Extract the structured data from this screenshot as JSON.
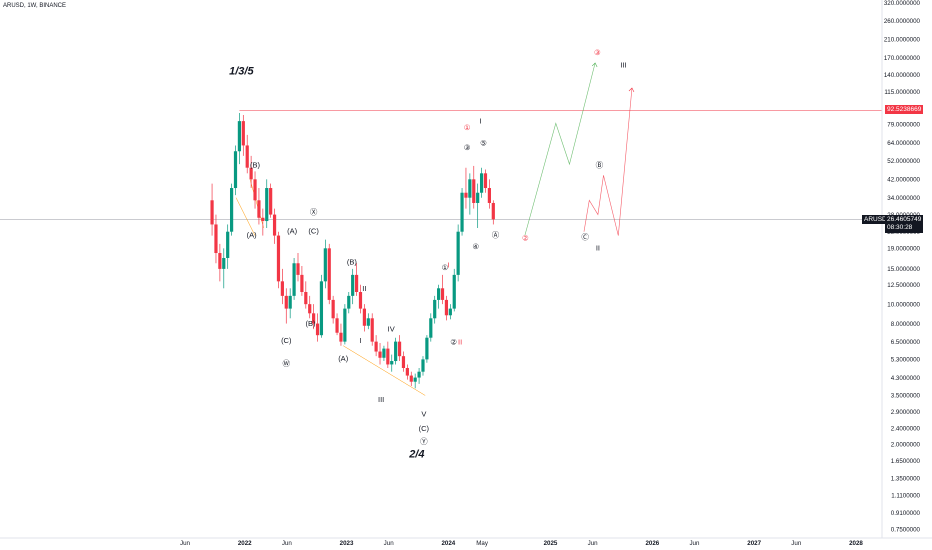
{
  "header": {
    "symbol_info": "ARUSD, 1W, BINANCE"
  },
  "price_axis": {
    "current_symbol": "ARUSD",
    "current_price": "26.4605749",
    "countdown": "08:30:28",
    "line_price": "92.5238669"
  },
  "colors": {
    "up_candle": "#089981",
    "down_candle": "#f23645",
    "resistance_line": "#f23645",
    "current_line": "#9598a1",
    "wave_label": "#131722",
    "forecast_label": "#f23645",
    "forecast_up": "#4caf50",
    "forecast_red": "#f23645",
    "wedge": "#ff9800"
  },
  "chart_data": {
    "type": "candlestick",
    "y_scale": "log",
    "ylim": [
      0.68,
      330
    ],
    "yticks": [
      "0.7500000",
      "0.9100000",
      "1.1100000",
      "1.3500000",
      "1.6500000",
      "2.0000000",
      "2.4000000",
      "2.9000000",
      "3.5000000",
      "4.3000000",
      "5.3000000",
      "6.5000000",
      "8.0000000",
      "10.0000000",
      "12.5000000",
      "15.0000000",
      "19.0000000",
      "23.0000000",
      "28.0000000",
      "34.0000000",
      "42.0000000",
      "52.0000000",
      "64.0000000",
      "79.0000000",
      "92.5238669",
      "115.0000000",
      "140.0000000",
      "170.0000000",
      "210.0000000",
      "260.0000000",
      "320.0000000"
    ],
    "xticks": [
      "Jun",
      "2022",
      "Jun",
      "2023",
      "Jun",
      "2024",
      "May",
      "2025",
      "Jun",
      "2026",
      "Jun",
      "2027",
      "Jun",
      "2028"
    ],
    "xtick_dates": [
      "2021-06-01",
      "2022-01-01",
      "2022-06-01",
      "2023-01-01",
      "2023-06-01",
      "2024-01-01",
      "2024-05-01",
      "2025-01-01",
      "2025-06-01",
      "2026-01-01",
      "2026-06-01",
      "2027-01-01",
      "2027-06-01",
      "2028-01-01"
    ],
    "series": [
      {
        "values": [
          [
            "2021-09-06",
            33,
            40,
            22,
            25
          ],
          [
            "2021-09-20",
            25,
            28,
            16,
            18
          ],
          [
            "2021-10-04",
            18,
            20,
            13,
            15
          ],
          [
            "2021-10-18",
            15,
            19,
            12,
            17
          ],
          [
            "2021-11-01",
            17,
            25,
            15,
            23
          ],
          [
            "2021-11-15",
            23,
            40,
            22,
            38
          ],
          [
            "2021-11-29",
            38,
            62,
            35,
            58
          ],
          [
            "2021-12-13",
            58,
            90,
            50,
            82
          ],
          [
            "2021-12-27",
            82,
            88,
            55,
            62
          ],
          [
            "2022-01-10",
            62,
            70,
            45,
            48
          ],
          [
            "2022-01-24",
            48,
            55,
            38,
            42
          ],
          [
            "2022-02-07",
            42,
            46,
            30,
            33
          ],
          [
            "2022-02-21",
            33,
            38,
            25,
            27
          ],
          [
            "2022-03-07",
            27,
            30,
            22,
            26
          ],
          [
            "2022-03-21",
            26,
            42,
            24,
            38
          ],
          [
            "2022-04-04",
            38,
            40,
            27,
            28
          ],
          [
            "2022-04-18",
            28,
            30,
            20,
            22
          ],
          [
            "2022-05-02",
            22,
            23,
            12,
            13
          ],
          [
            "2022-05-16",
            13,
            15,
            10,
            11
          ],
          [
            "2022-05-30",
            11,
            12,
            8,
            9.5
          ],
          [
            "2022-06-13",
            9.5,
            12,
            8.5,
            11
          ],
          [
            "2022-06-27",
            11,
            17,
            10.5,
            16
          ],
          [
            "2022-07-11",
            16,
            18,
            13,
            14
          ],
          [
            "2022-07-25",
            14,
            15.5,
            11,
            11.5
          ],
          [
            "2022-08-08",
            11.5,
            13,
            9.5,
            10
          ],
          [
            "2022-08-22",
            10,
            11,
            8.5,
            9
          ],
          [
            "2022-09-05",
            9,
            10,
            7.5,
            8
          ],
          [
            "2022-09-19",
            8,
            9,
            6.5,
            7
          ],
          [
            "2022-10-03",
            7,
            14,
            6.8,
            13
          ],
          [
            "2022-10-17",
            13,
            21,
            12,
            19
          ],
          [
            "2022-10-31",
            19,
            20,
            10,
            10.5
          ],
          [
            "2022-11-14",
            10.5,
            11,
            8,
            8.5
          ],
          [
            "2022-11-28",
            8.5,
            9,
            7,
            7.2
          ],
          [
            "2022-12-12",
            7.2,
            8,
            6.2,
            6.5
          ],
          [
            "2022-12-26",
            6.5,
            10,
            6.3,
            9.5
          ],
          [
            "2023-01-09",
            9.5,
            11.5,
            9,
            11
          ],
          [
            "2023-01-23",
            11,
            15,
            10,
            14
          ],
          [
            "2023-02-06",
            14,
            16,
            11,
            11.5
          ],
          [
            "2023-02-20",
            11.5,
            12.5,
            9,
            9.5
          ],
          [
            "2023-03-06",
            9.5,
            10,
            7.3,
            7.8
          ],
          [
            "2023-03-20",
            7.8,
            9,
            7.5,
            8.5
          ],
          [
            "2023-04-03",
            8.5,
            9,
            6.2,
            6.5
          ],
          [
            "2023-04-17",
            6.5,
            7,
            5.5,
            5.8
          ],
          [
            "2023-05-01",
            5.8,
            6.4,
            5,
            5.4
          ],
          [
            "2023-05-15",
            5.4,
            6.2,
            5.2,
            6
          ],
          [
            "2023-05-29",
            6,
            6.5,
            4.8,
            5
          ],
          [
            "2023-06-12",
            5,
            5.6,
            4.6,
            5.2
          ],
          [
            "2023-06-26",
            5.2,
            6.8,
            5,
            6.5
          ],
          [
            "2023-07-10",
            6.5,
            7,
            5.2,
            5.5
          ],
          [
            "2023-07-24",
            5.5,
            5.8,
            4.6,
            4.8
          ],
          [
            "2023-08-07",
            4.8,
            5,
            4.2,
            4.4
          ],
          [
            "2023-08-21",
            4.4,
            4.6,
            3.9,
            4.1
          ],
          [
            "2023-09-04",
            4.1,
            4.5,
            3.8,
            4.3
          ],
          [
            "2023-09-18",
            4.3,
            4.8,
            4,
            4.6
          ],
          [
            "2023-10-02",
            4.6,
            5.5,
            4.4,
            5.3
          ],
          [
            "2023-10-16",
            5.3,
            7,
            5.1,
            6.8
          ],
          [
            "2023-10-30",
            6.8,
            9,
            6.5,
            8.5
          ],
          [
            "2023-11-13",
            8.5,
            11,
            8,
            10.5
          ],
          [
            "2023-11-27",
            10.5,
            12.5,
            9.5,
            12
          ],
          [
            "2023-12-11",
            12,
            14,
            10,
            10.5
          ],
          [
            "2023-12-25",
            10.5,
            11,
            8.3,
            8.8
          ],
          [
            "2024-01-08",
            8.8,
            10,
            8.4,
            9.5
          ],
          [
            "2024-01-22",
            9.5,
            15,
            9.2,
            14
          ],
          [
            "2024-02-05",
            14,
            25,
            13,
            23
          ],
          [
            "2024-02-19",
            23,
            38,
            22,
            36
          ],
          [
            "2024-03-04",
            36,
            48,
            30,
            34
          ],
          [
            "2024-03-18",
            34,
            45,
            28,
            42
          ],
          [
            "2024-04-01",
            42,
            49,
            30,
            32
          ],
          [
            "2024-04-15",
            32,
            40,
            24,
            36
          ],
          [
            "2024-04-29",
            36,
            48,
            34,
            45
          ],
          [
            "2024-05-13",
            45,
            47,
            36,
            38
          ],
          [
            "2024-05-27",
            38,
            42,
            30,
            32
          ],
          [
            "2024-06-10",
            32,
            33,
            25,
            26.5
          ]
        ]
      }
    ],
    "annotations": [
      {
        "text": "1/3/5",
        "date": "2021-12-20",
        "price": 140
      },
      {
        "text": "2/4",
        "date": "2023-09-10",
        "price": 1.72
      },
      {
        "text": "I",
        "date": "2024-04-25",
        "price": 80
      },
      {
        "text": "(B)",
        "date": "2022-02-07",
        "price": 48
      },
      {
        "text": "(A)",
        "date": "2022-01-26",
        "price": 21.5
      },
      {
        "text": "(A)",
        "date": "2022-06-20",
        "price": 22.5
      },
      {
        "text": "Ⓧ",
        "date": "2022-09-05",
        "price": 28
      },
      {
        "text": "(C)",
        "date": "2022-09-05",
        "price": 22.5
      },
      {
        "text": "(B)",
        "date": "2022-08-25",
        "price": 7.8
      },
      {
        "text": "(C)",
        "date": "2022-05-30",
        "price": 6.4
      },
      {
        "text": "Ⓦ",
        "date": "2022-05-30",
        "price": 4.9
      },
      {
        "text": "(B)",
        "date": "2023-01-20",
        "price": 15.8
      },
      {
        "text": "II",
        "date": "2023-03-06",
        "price": 11.6
      },
      {
        "text": "(A)",
        "date": "2022-12-20",
        "price": 5.2
      },
      {
        "text": "I",
        "date": "2023-02-20",
        "price": 6.4
      },
      {
        "text": "IV",
        "date": "2023-06-10",
        "price": 7.3
      },
      {
        "text": "III",
        "date": "2023-05-05",
        "price": 3.25
      },
      {
        "text": "V",
        "date": "2023-10-05",
        "price": 2.75
      },
      {
        "text": "(C)",
        "date": "2023-10-05",
        "price": 2.32
      },
      {
        "text": "Ⓨ",
        "date": "2023-10-05",
        "price": 2.0
      },
      {
        "text": "①",
        "date": "2023-12-20",
        "price": 14.8
      },
      {
        "text": "②",
        "date": "2024-01-20",
        "price": 6.3
      },
      {
        "text": "③",
        "date": "2024-03-08",
        "price": 59
      },
      {
        "text": "④",
        "date": "2024-04-08",
        "price": 18.8
      },
      {
        "text": "⑤",
        "date": "2024-05-06",
        "price": 62
      },
      {
        "text": "Ⓐ",
        "date": "2024-06-18",
        "price": 21.5
      },
      {
        "text": "Ⓒ",
        "date": "2025-05-05",
        "price": 21
      },
      {
        "text": "Ⓑ",
        "date": "2025-06-25",
        "price": 48
      },
      {
        "text": "II",
        "date": "2025-06-20",
        "price": 18.5
      },
      {
        "text": "III",
        "date": "2025-09-20",
        "price": 152
      }
    ],
    "forecast_annotations": [
      {
        "text": "①",
        "date": "2024-03-08",
        "price": 74
      },
      {
        "text": "I",
        "date": "2024-01-01",
        "price": 15.2
      },
      {
        "text": "II",
        "date": "2024-02-12",
        "price": 6.3
      },
      {
        "text": "②",
        "date": "2024-10-03",
        "price": 20.8
      },
      {
        "text": "③",
        "date": "2025-06-18",
        "price": 175
      }
    ]
  }
}
